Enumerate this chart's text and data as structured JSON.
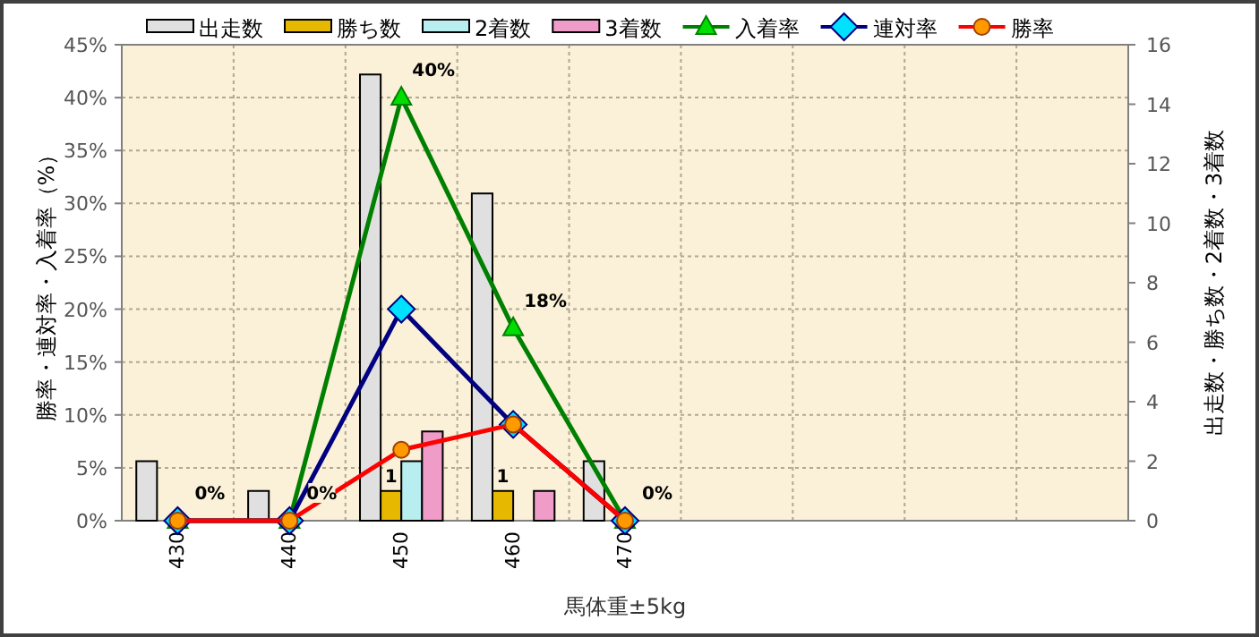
{
  "chart_data": {
    "type": "bar",
    "xlabel": "馬体重±5kg",
    "ylabel": "勝率・連対率・入着率（%）",
    "y2label": "出走数・勝ち数・2着数・3着数",
    "categories": [
      "430",
      "440",
      "450",
      "460",
      "470",
      null,
      null,
      null,
      null
    ],
    "ylim": [
      0,
      45
    ],
    "yticks": [
      {
        "value": 0,
        "label": "0%"
      },
      {
        "value": 5,
        "label": "5%"
      },
      {
        "value": 10,
        "label": "10%"
      },
      {
        "value": 15,
        "label": "15%"
      },
      {
        "value": 20,
        "label": "20%"
      },
      {
        "value": 25,
        "label": "25%"
      },
      {
        "value": 30,
        "label": "30%"
      },
      {
        "value": 35,
        "label": "35%"
      },
      {
        "value": 40,
        "label": "40%"
      },
      {
        "value": 45,
        "label": "45%"
      }
    ],
    "y2lim": [
      0,
      16
    ],
    "y2ticks": [
      0,
      2,
      4,
      6,
      8,
      10,
      12,
      14,
      16
    ],
    "grid": true,
    "legend": "top",
    "series": [
      {
        "name": "出走数",
        "type": "bar",
        "axis": "y2",
        "color": "#e0e0e0",
        "values": [
          2,
          1,
          15,
          11,
          2,
          null,
          null,
          null,
          null
        ]
      },
      {
        "name": "勝ち数",
        "type": "bar",
        "axis": "y2",
        "color": "#e6b800",
        "values": [
          0,
          0,
          1,
          1,
          0,
          null,
          null,
          null,
          null
        ],
        "value_labels": [
          null,
          null,
          "1",
          "1",
          null,
          null,
          null,
          null,
          null
        ]
      },
      {
        "name": "2着数",
        "type": "bar",
        "axis": "y2",
        "color": "#b8eef0",
        "values": [
          0,
          0,
          2,
          0,
          0,
          null,
          null,
          null,
          null
        ]
      },
      {
        "name": "3着数",
        "type": "bar",
        "axis": "y2",
        "color": "#f09cc8",
        "values": [
          0,
          0,
          3,
          1,
          0,
          null,
          null,
          null,
          null
        ]
      },
      {
        "name": "入着率",
        "type": "line",
        "color": "#008000",
        "marker": "triangle",
        "values": [
          0,
          0,
          40,
          18.2,
          0,
          null,
          null,
          null,
          null
        ],
        "value_labels": [
          "0%",
          "0%",
          "40%",
          "18%",
          "0%",
          null,
          null,
          null,
          null
        ]
      },
      {
        "name": "連対率",
        "type": "line",
        "color": "#000080",
        "marker": "diamond",
        "values": [
          0,
          0,
          20,
          9.1,
          0,
          null,
          null,
          null,
          null
        ]
      },
      {
        "name": "勝率",
        "type": "line",
        "color": "#ff0000",
        "marker": "circle",
        "values": [
          0,
          0,
          6.7,
          9.1,
          0,
          null,
          null,
          null,
          null
        ]
      }
    ]
  }
}
